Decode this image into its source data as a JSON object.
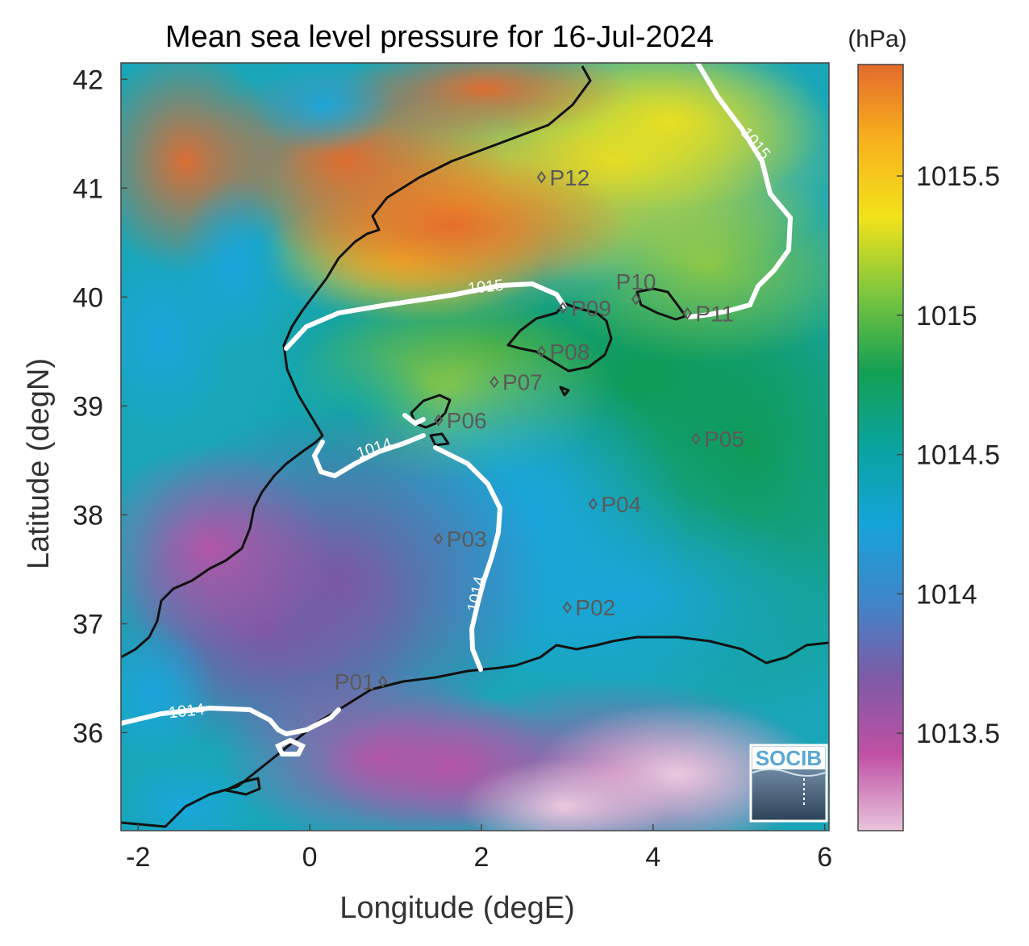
{
  "title": "Mean sea level pressure for 16-Jul-2024",
  "colorbar": {
    "unit": "(hPa)",
    "ticks": [
      {
        "value": 1013.5,
        "label": "1013.5"
      },
      {
        "value": 1014,
        "label": "1014"
      },
      {
        "value": 1014.5,
        "label": "1014.5"
      },
      {
        "value": 1015,
        "label": "1015"
      },
      {
        "value": 1015.5,
        "label": "1015.5"
      }
    ],
    "range": [
      1013.15,
      1015.9
    ],
    "colors": [
      "#e8c4dc",
      "#c050a4",
      "#7d5aa6",
      "#3f86c9",
      "#16a3d8",
      "#0aa3a0",
      "#13a052",
      "#7cc63e",
      "#f2e21a",
      "#f7b21c",
      "#e46a2c"
    ]
  },
  "map": {
    "xlabel": "Longitude (degE)",
    "ylabel": "Latitude (degN)",
    "xlim": [
      -2.2,
      6.05
    ],
    "ylim": [
      35.1,
      42.15
    ],
    "xticks": [
      {
        "value": -2,
        "label": "-2"
      },
      {
        "value": 0,
        "label": "0"
      },
      {
        "value": 2,
        "label": "2"
      },
      {
        "value": 4,
        "label": "4"
      },
      {
        "value": 6,
        "label": "6"
      }
    ],
    "yticks": [
      {
        "value": 36,
        "label": "36"
      },
      {
        "value": 37,
        "label": "37"
      },
      {
        "value": 38,
        "label": "38"
      },
      {
        "value": 39,
        "label": "39"
      },
      {
        "value": 40,
        "label": "40"
      },
      {
        "value": 41,
        "label": "41"
      },
      {
        "value": 42,
        "label": "42"
      }
    ]
  },
  "stations": [
    {
      "name": "P01",
      "lon": 0.85,
      "lat": 36.47,
      "label_side": "left"
    },
    {
      "name": "P02",
      "lon": 3.0,
      "lat": 37.15,
      "label_side": "right"
    },
    {
      "name": "P03",
      "lon": 1.5,
      "lat": 37.78,
      "label_side": "right"
    },
    {
      "name": "P04",
      "lon": 3.3,
      "lat": 38.1,
      "label_side": "right"
    },
    {
      "name": "P05",
      "lon": 4.5,
      "lat": 38.7,
      "label_side": "right"
    },
    {
      "name": "P06",
      "lon": 1.5,
      "lat": 38.87,
      "label_side": "right"
    },
    {
      "name": "P07",
      "lon": 2.15,
      "lat": 39.22,
      "label_side": "right"
    },
    {
      "name": "P08",
      "lon": 2.7,
      "lat": 39.5,
      "label_side": "right"
    },
    {
      "name": "P09",
      "lon": 2.95,
      "lat": 39.9,
      "label_side": "right"
    },
    {
      "name": "P10",
      "lon": 3.8,
      "lat": 39.98,
      "label_side": "above"
    },
    {
      "name": "P11",
      "lon": 4.4,
      "lat": 39.85,
      "label_side": "right"
    },
    {
      "name": "P12",
      "lon": 2.7,
      "lat": 41.1,
      "label_side": "right"
    }
  ],
  "contours": [
    {
      "level": "1015",
      "label": "1015"
    },
    {
      "level": "1014",
      "label": "1014"
    }
  ],
  "logo": {
    "text": "SOCIB"
  }
}
